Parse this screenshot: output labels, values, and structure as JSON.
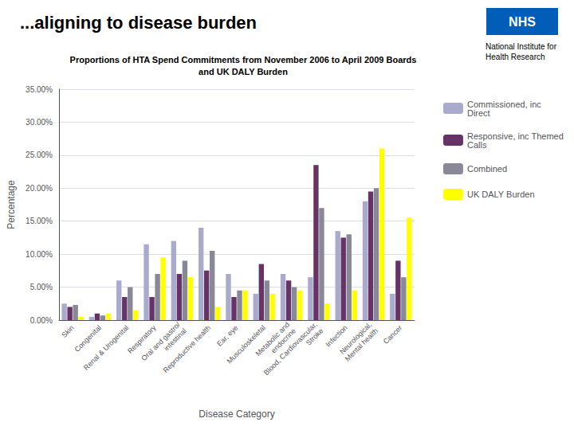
{
  "chart_data": {
    "type": "bar",
    "title": "...aligning to disease burden",
    "subtitle": "Proportions of HTA Spend Commitments from November 2006 to April 2009 Boards\nand UK DALY Burden",
    "xlabel": "Disease Category",
    "ylabel": "Percentage",
    "annotations": [
      {
        "text": "NHS",
        "color": "#005EB8"
      },
      {
        "text": "National Institute for\nHealth Research"
      }
    ],
    "categories": [
      "Skin",
      "Congenital",
      "Renal & Urogenital",
      "Respiratory",
      "Oral and gastro/\nintestinal",
      "Reproductive health",
      "Ear, eye",
      "Musculoskeletal",
      "Metabolic and\nendocrine",
      "Blood, Cardiovascular,\nStroke",
      "Infection",
      "Neurological,\nMental health",
      "Cancer"
    ],
    "series": [
      {
        "name": "Commissioned, inc\nDirect",
        "color": "#AAAACC",
        "values": [
          0.025,
          0.005,
          0.06,
          0.115,
          0.12,
          0.14,
          0.07,
          0.04,
          0.07,
          0.065,
          0.135,
          0.18,
          0.04
        ]
      },
      {
        "name": "Responsive, inc Themed\nCalls",
        "color": "#663366",
        "values": [
          0.02,
          0.01,
          0.035,
          0.035,
          0.07,
          0.075,
          0.035,
          0.085,
          0.06,
          0.235,
          0.125,
          0.195,
          0.09
        ]
      },
      {
        "name": "Combined",
        "color": "#888899",
        "values": [
          0.023,
          0.007,
          0.05,
          0.07,
          0.09,
          0.105,
          0.045,
          0.06,
          0.05,
          0.17,
          0.13,
          0.2,
          0.065
        ]
      },
      {
        "name": "UK DALY Burden",
        "color": "#FFFF00",
        "values": [
          0.005,
          0.01,
          0.015,
          0.095,
          0.065,
          0.02,
          0.045,
          0.04,
          0.045,
          0.025,
          0.045,
          0.26,
          0.155
        ]
      }
    ],
    "ylim": [
      0,
      0.35
    ],
    "yticks": [
      {
        "value": 0,
        "label": "0.00%"
      },
      {
        "value": 0.05,
        "label": "5.00%"
      },
      {
        "value": 0.1,
        "label": "10.00%"
      },
      {
        "value": 0.15,
        "label": "15.00%"
      },
      {
        "value": 0.2,
        "label": "20.00%"
      },
      {
        "value": 0.25,
        "label": "25.00%"
      },
      {
        "value": 0.3,
        "label": "30.00%"
      },
      {
        "value": 0.35,
        "label": "35.00%"
      }
    ],
    "grid": true,
    "legend": "right"
  }
}
